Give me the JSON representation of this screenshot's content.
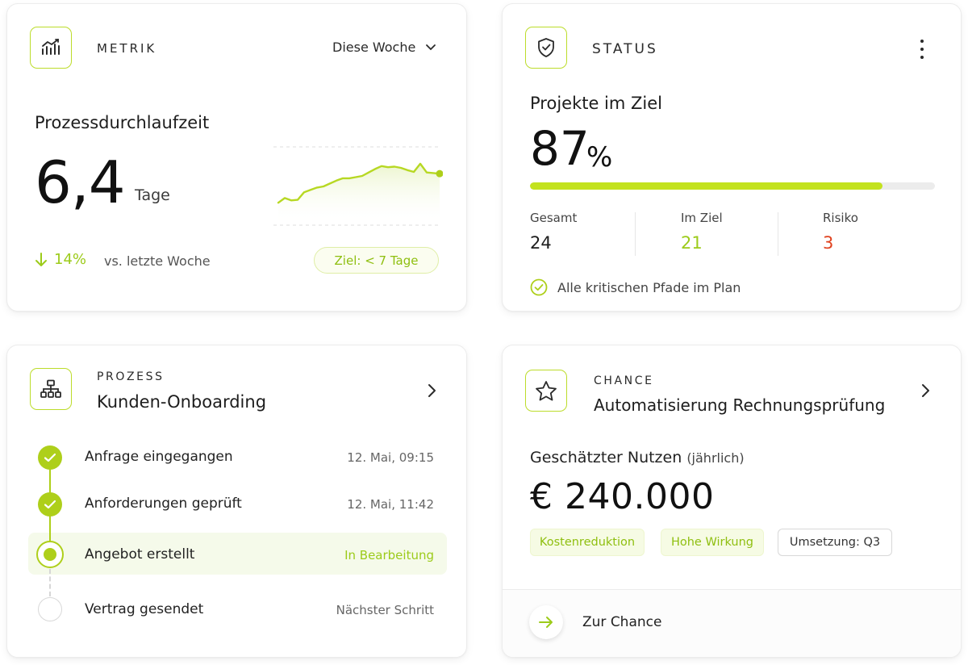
{
  "metric_card": {
    "label": "METRIK",
    "period": "Diese Woche",
    "title": "Prozessdurchlaufzeit",
    "value": "6,4",
    "unit": "Tage",
    "change": "14%",
    "change_text": "vs. letzte Woche",
    "goal": "Ziel: < 7 Tage",
    "sparkline": [
      22,
      30,
      26,
      27,
      40,
      44,
      48,
      50,
      55,
      60,
      64,
      64,
      66,
      68,
      74,
      80,
      85,
      83,
      84,
      82,
      78,
      75,
      89,
      74,
      73,
      72
    ]
  },
  "status_card": {
    "label": "STATUS",
    "title": "Projekte im Ziel",
    "percent": "87",
    "percent_sign": "%",
    "progress": 0.87,
    "stats": [
      {
        "label": "Gesamt",
        "value": "24",
        "color": "#1d1d1d"
      },
      {
        "label": "Im Ziel",
        "value": "21",
        "color": "#9ccb1a"
      },
      {
        "label": "Risiko",
        "value": "3",
        "color": "#e0421f"
      }
    ],
    "note": "Alle kritischen Pfade im Plan"
  },
  "process_card": {
    "label": "PROZESS",
    "title": "Kunden-Onboarding",
    "steps": [
      {
        "title": "Anfrage eingegangen",
        "meta": "12. Mai, 09:15",
        "state": "done"
      },
      {
        "title": "Anforderungen geprüft",
        "meta": "12. Mai, 11:42",
        "state": "done"
      },
      {
        "title": "Angebot erstellt",
        "meta": "In Bearbeitung",
        "state": "active"
      },
      {
        "title": "Vertrag gesendet",
        "meta": "Nächster Schritt",
        "state": "todo"
      }
    ]
  },
  "chance_card": {
    "label": "CHANCE",
    "title": "Automatisierung Rechnungsprüfung",
    "benefit_label": "Geschätzter Nutzen",
    "benefit_sub": "(jährlich)",
    "benefit_value": "€ 240.000",
    "tags": [
      {
        "text": "Kostenreduktion",
        "style": "green"
      },
      {
        "text": "Hohe Wirkung",
        "style": "green"
      },
      {
        "text": "Umsetzung: Q3",
        "style": "gray"
      }
    ],
    "link": "Zur Chance"
  },
  "colors": {
    "accent": "#aecf1a",
    "accent_text": "#9ccb1a",
    "risk": "#e0421f"
  }
}
